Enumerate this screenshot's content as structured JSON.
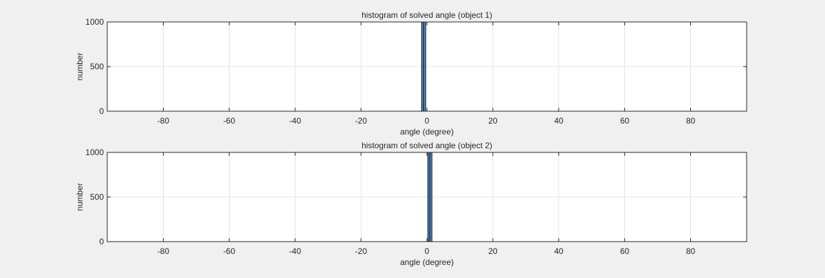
{
  "colors": {
    "figure_background": "#f0f0f0",
    "axes_background": "#ffffff",
    "bar_fill": "#5b9bd5",
    "bar_edge": "#000000",
    "grid": "#dcdcdc",
    "axis": "#262626"
  },
  "chart_data": [
    {
      "type": "bar",
      "title": "histogram of solved angle (object 1)",
      "xlabel": "angle (degree)",
      "ylabel": "number",
      "xlim": [
        -97,
        97
      ],
      "ylim": [
        0,
        1000
      ],
      "xticks": [
        -80,
        -60,
        -40,
        -20,
        0,
        20,
        40,
        60,
        80
      ],
      "yticks": [
        0,
        500,
        1000
      ],
      "grid": true,
      "bins": [
        {
          "x0": -1.6,
          "x1": -1.0,
          "count": 1000
        },
        {
          "x0": -1.0,
          "x1": -0.4,
          "count": 1000
        }
      ]
    },
    {
      "type": "bar",
      "title": "histogram of solved angle (object 2)",
      "xlabel": "angle (degree)",
      "ylabel": "number",
      "xlim": [
        -97,
        97
      ],
      "ylim": [
        0,
        1000
      ],
      "xticks": [
        -80,
        -60,
        -40,
        -20,
        0,
        20,
        40,
        60,
        80
      ],
      "yticks": [
        0,
        500,
        1000
      ],
      "grid": true,
      "bins": [
        {
          "x0": 0.3,
          "x1": 0.9,
          "count": 1000
        },
        {
          "x0": 0.9,
          "x1": 1.5,
          "count": 1000
        }
      ]
    }
  ]
}
